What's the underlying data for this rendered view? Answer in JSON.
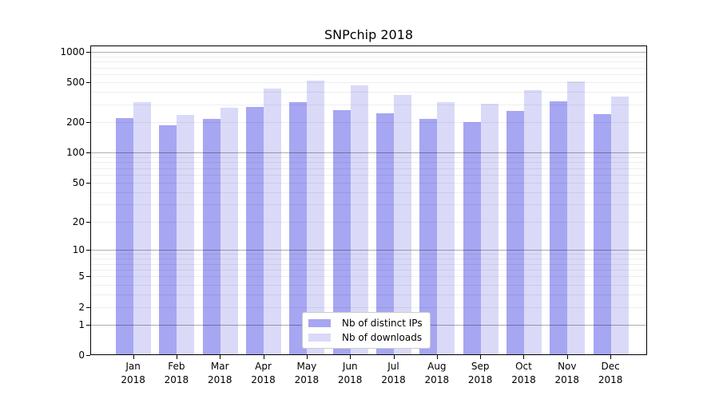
{
  "title": "SNPchip 2018",
  "chart_data": {
    "type": "bar",
    "title": "SNPchip 2018",
    "y_scale": "log10(1+y)",
    "ylim": [
      0,
      1160
    ],
    "yticks": [
      1000,
      500,
      200,
      100,
      50,
      20,
      10,
      5,
      2,
      1,
      0
    ],
    "grid": "on (log decades dark, intermediate values light)",
    "categories": [
      "Jan",
      "Feb",
      "Mar",
      "Apr",
      "May",
      "Jun",
      "Jul",
      "Aug",
      "Sep",
      "Oct",
      "Nov",
      "Dec"
    ],
    "x_tick_year": "2018",
    "series": [
      {
        "name": "Nb of distinct IPs",
        "color": "#a6a6f2",
        "values": [
          220,
          187,
          218,
          285,
          317,
          265,
          248,
          218,
          202,
          262,
          324,
          242
        ]
      },
      {
        "name": "Nb of downloads",
        "color": "#dadaf8",
        "values": [
          320,
          237,
          280,
          435,
          520,
          468,
          378,
          320,
          306,
          420,
          515,
          360
        ]
      }
    ],
    "legend_position": "inside-bottom-center"
  },
  "colors": {
    "background": "#ffffff",
    "bar_distinct_ips": "#a6a6f2",
    "bar_downloads": "#dadaf8",
    "axis": "#000000",
    "legend_border": "#cccccc"
  }
}
